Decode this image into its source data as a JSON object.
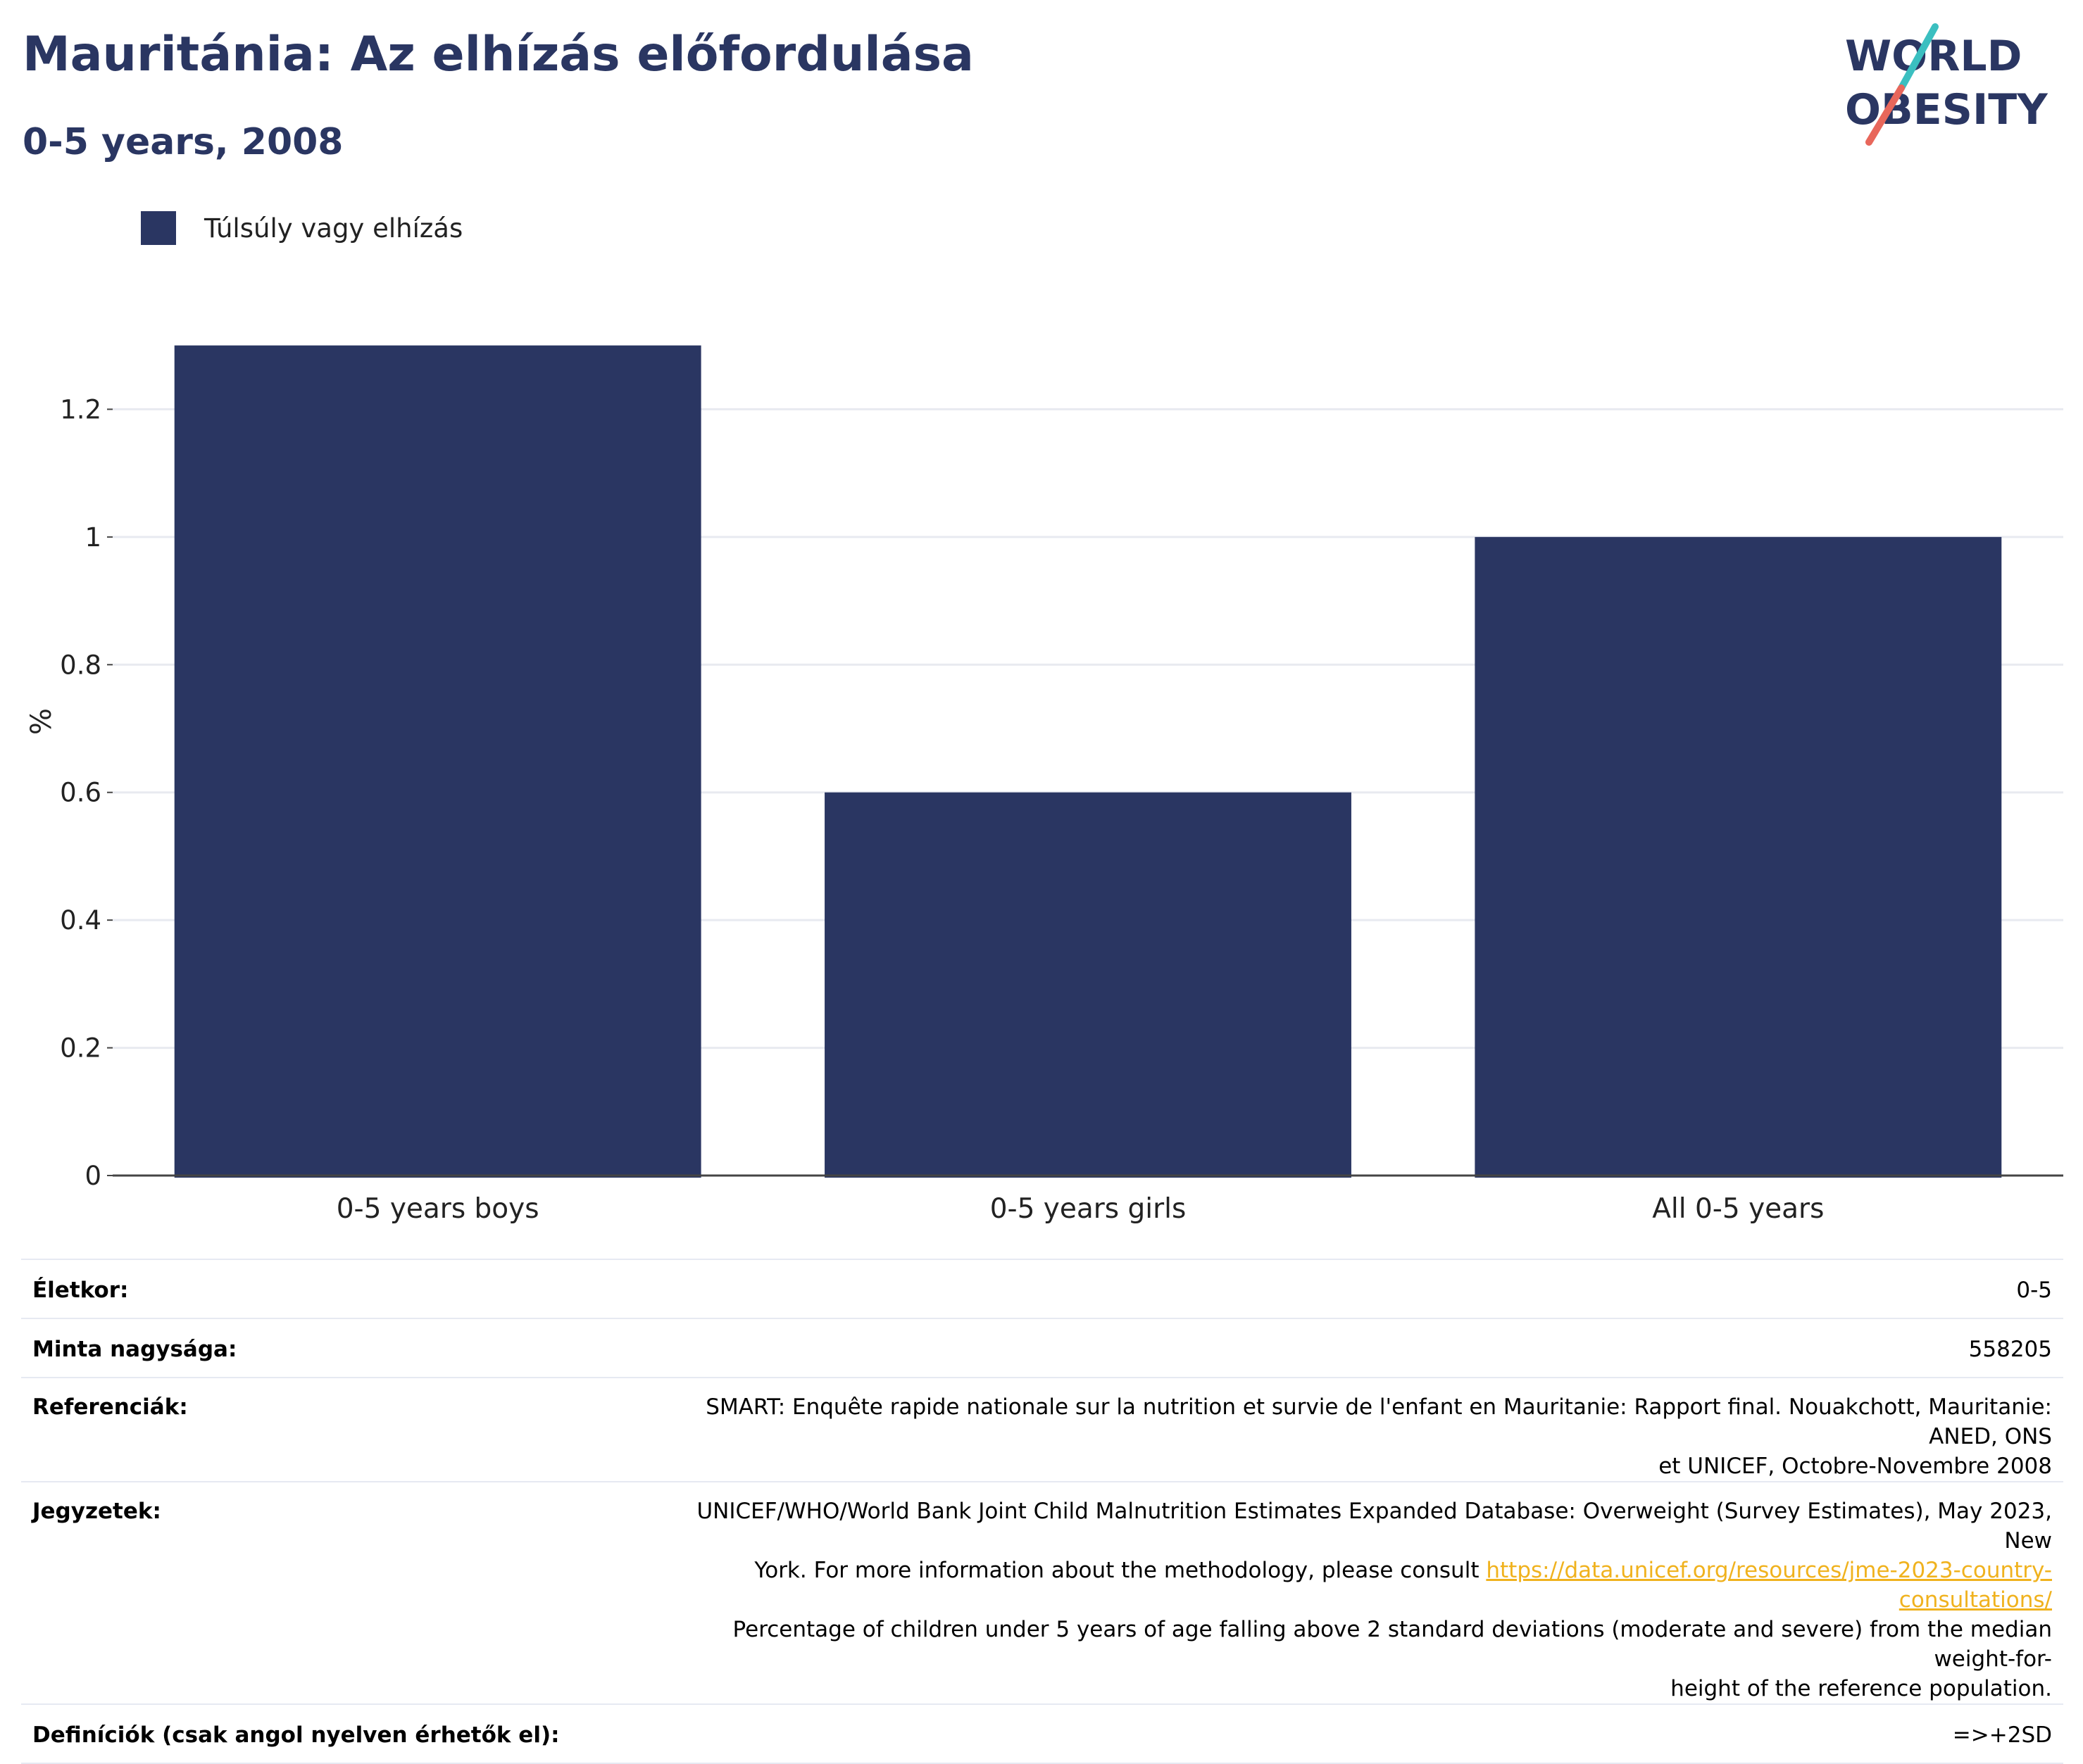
{
  "header": {
    "title": "Mauritánia: Az elhízás előfordulása",
    "subtitle": "0-5 years, 2008"
  },
  "logo": {
    "text_line1": "WORLD",
    "text_line2": "OBESITY",
    "colors": {
      "text": "#2a3662",
      "slash_top": "#3bbfc0",
      "slash_bottom": "#e8675b"
    }
  },
  "legend": {
    "label": "Túlsúly vagy elhízás",
    "color": "#2a3662"
  },
  "chart_data": {
    "type": "bar",
    "categories": [
      "0-5 years boys",
      "0-5 years girls",
      "All 0-5 years"
    ],
    "series": [
      {
        "name": "Túlsúly vagy elhízás",
        "values": [
          1.3,
          0.6,
          1.0
        ]
      }
    ],
    "ylabel": "%",
    "ylim": [
      0,
      1.4
    ],
    "yticks": [
      0,
      0.2,
      0.4,
      0.6,
      0.8,
      1,
      1.2
    ],
    "ytick_labels": [
      "0",
      "0.2",
      "0.4",
      "0.6",
      "0.8",
      "1",
      "1.2"
    ],
    "grid": true,
    "bar_color": "#2a3662"
  },
  "info": {
    "age_label": "Életkor:",
    "age_value": "0-5",
    "sample_label": "Minta nagysága:",
    "sample_value": "558205",
    "ref_label": "Referenciák:",
    "ref_line1": "SMART: Enquête rapide nationale sur la nutrition et survie de l'enfant en Mauritanie: Rapport final. Nouakchott, Mauritanie: ANED, ONS",
    "ref_line2": "et UNICEF, Octobre-Novembre 2008",
    "notes_label": "Jegyzetek:",
    "notes_line1": "UNICEF/WHO/World Bank Joint Child Malnutrition Estimates Expanded Database: Overweight (Survey Estimates), May 2023, New",
    "notes_line2_prefix": "York. For more information about the methodology, please consult ",
    "notes_link": "https://data.unicef.org/resources/jme-2023-country-consultations/",
    "notes_line3": "Percentage of children under 5 years of age falling above 2 standard deviations (moderate and severe) from the median weight-for-",
    "notes_line4": "height of the reference population.",
    "def_label": "Definíciók (csak angol nyelven érhetők el):",
    "def_value": "=>+2SD"
  }
}
